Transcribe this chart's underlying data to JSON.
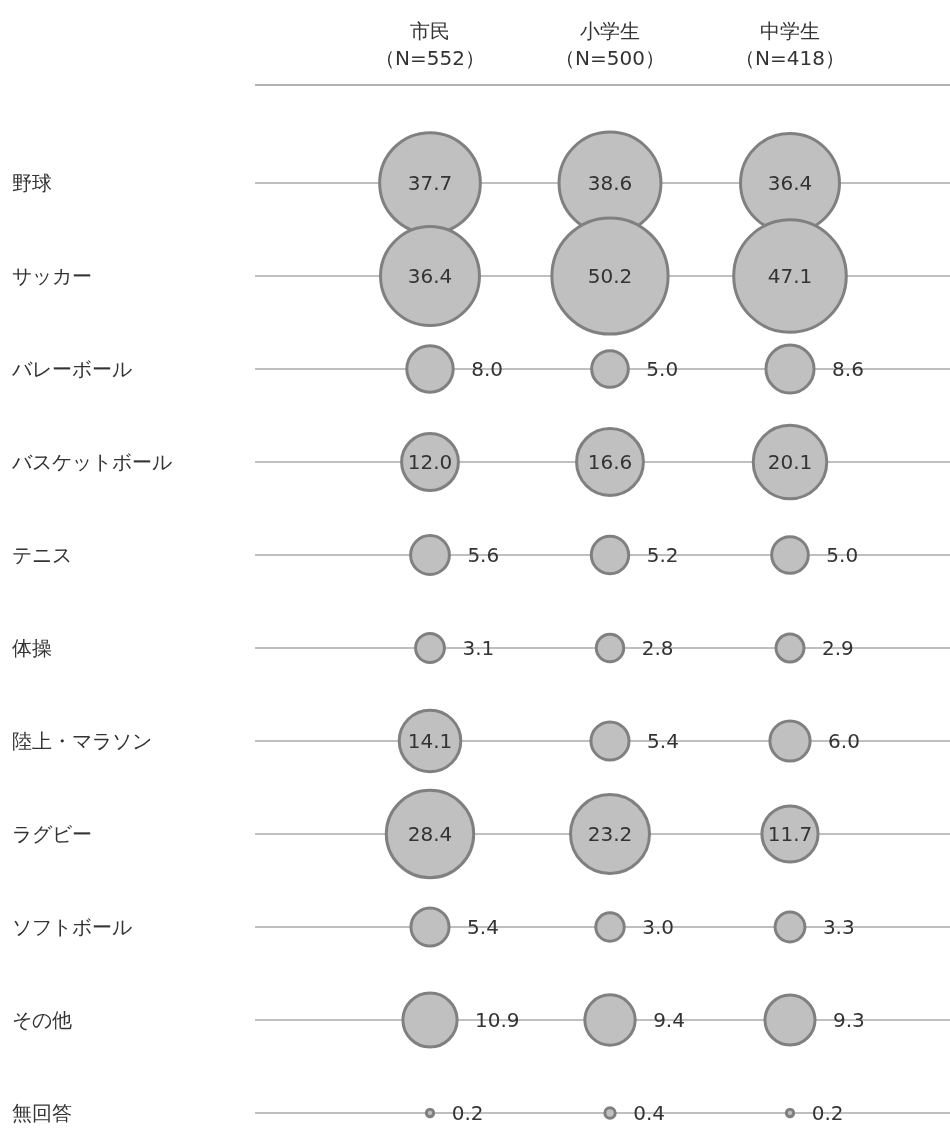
{
  "chart_data": {
    "type": "heatmap",
    "categories": [
      "市民（N=552）",
      "小学生（N=500）",
      "中学生（N=418）"
    ],
    "y_categories": [
      "野球",
      "サッカー",
      "バレーボール",
      "バスケットボール",
      "テニス",
      "体操",
      "陸上・マラソン",
      "ラグビー",
      "ソフトボール",
      "その他",
      "無回答"
    ],
    "cells": [
      [
        37.7,
        38.6,
        36.4
      ],
      [
        36.4,
        50.2,
        47.1
      ],
      [
        8.0,
        5.0,
        8.6
      ],
      [
        12.0,
        16.6,
        20.1
      ],
      [
        5.6,
        5.2,
        5.0
      ],
      [
        3.1,
        2.8,
        2.9
      ],
      [
        14.1,
        5.4,
        6.0
      ],
      [
        28.4,
        23.2,
        11.7
      ],
      [
        5.4,
        3.0,
        3.3
      ],
      [
        10.9,
        9.4,
        9.3
      ],
      [
        0.2,
        0.4,
        0.2
      ]
    ],
    "cell_labels": [
      [
        "37.7",
        "38.6",
        "36.4"
      ],
      [
        "36.4",
        "50.2",
        "47.1"
      ],
      [
        "8.0",
        "5.0",
        "8.6"
      ],
      [
        "12.0",
        "16.6",
        "20.1"
      ],
      [
        "5.6",
        "5.2",
        "5.0"
      ],
      [
        "3.1",
        "2.8",
        "2.9"
      ],
      [
        "14.1",
        "5.4",
        "6.0"
      ],
      [
        "28.4",
        "23.2",
        "11.7"
      ],
      [
        "5.4",
        "3.0",
        "3.3"
      ],
      [
        "10.9",
        "9.4",
        "9.3"
      ],
      [
        "0.2",
        "0.4",
        "0.2"
      ]
    ],
    "data_labels": true,
    "grid": "y",
    "color": "#c0c0c0"
  }
}
